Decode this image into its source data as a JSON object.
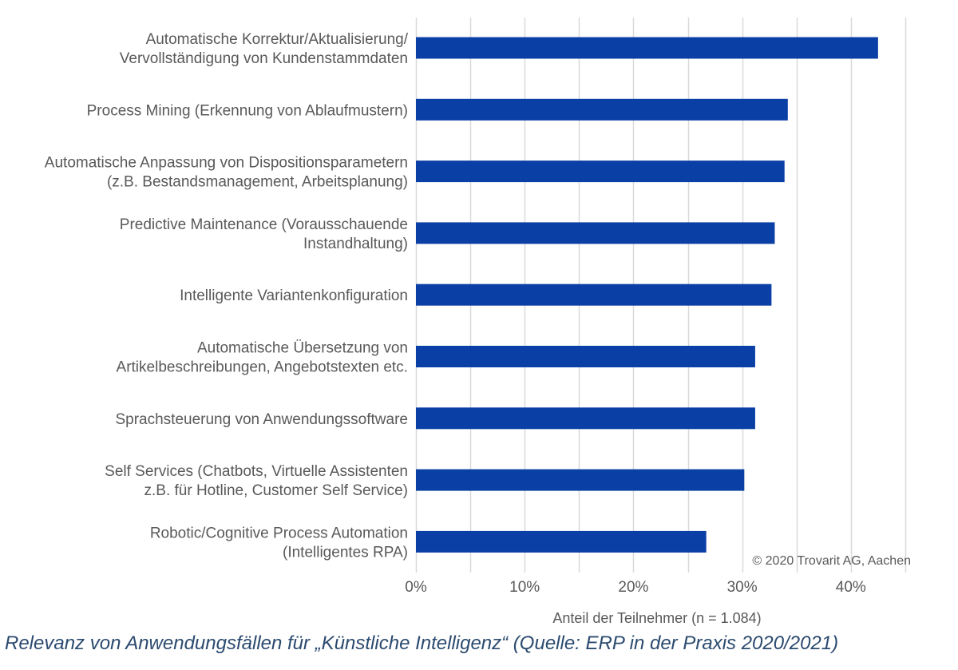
{
  "chart_data": {
    "type": "bar",
    "orientation": "horizontal",
    "categories": [
      [
        "Automatische Korrektur/Aktualisierung/",
        "Vervollständigung von Kundenstammdaten"
      ],
      [
        "Process Mining (Erkennung von Ablaufmustern)"
      ],
      [
        "Automatische Anpassung von Dispositionsparametern",
        "(z.B. Bestandsmanagement, Arbeitsplanung)"
      ],
      [
        "Predictive Maintenance (Vorausschauende",
        "Instandhaltung)"
      ],
      [
        "Intelligente Variantenkonfiguration"
      ],
      [
        "Automatische Übersetzung von",
        "Artikelbeschreibungen, Angebotstexten etc."
      ],
      [
        "Sprachsteuerung von Anwendungssoftware"
      ],
      [
        "Self Services (Chatbots, Virtuelle Assistenten",
        "z.B. für Hotline, Customer Self Service)"
      ],
      [
        "Robotic/Cognitive Process Automation",
        "(Intelligentes RPA)"
      ]
    ],
    "values": [
      42.5,
      34.2,
      33.9,
      33.0,
      32.7,
      31.2,
      31.2,
      30.2,
      26.7
    ],
    "unit": "%",
    "xlim": [
      0,
      46
    ],
    "xticks": [
      "0%",
      "10%",
      "20%",
      "30%",
      "40%"
    ],
    "xtick_values": [
      0,
      10,
      20,
      30,
      40
    ],
    "xlabel": "Anteil der Teilnehmer (n = 1.084)",
    "grid": true,
    "bar_color": "#0a3fa6",
    "annotation": "© 2020 Trovarit AG, Aachen"
  },
  "caption": "Relevanz von Anwendungsfällen für „Künstliche Intelligenz“ (Quelle: ERP in der Praxis 2020/2021)"
}
